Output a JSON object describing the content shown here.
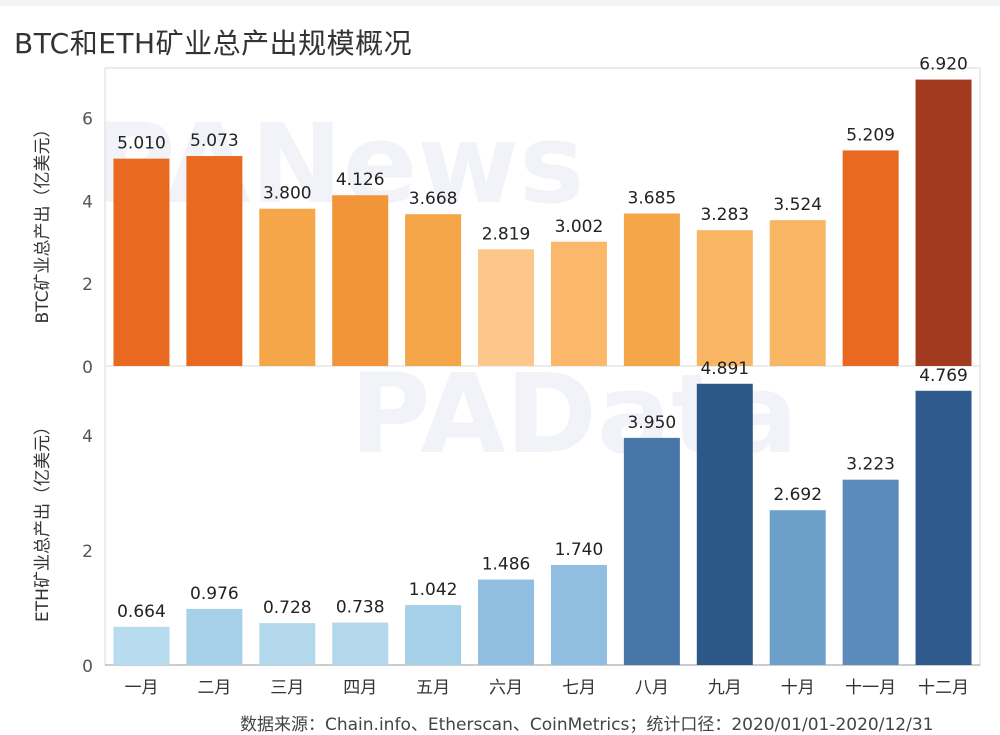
{
  "title": "BTC和ETH矿业总产出规模概况",
  "watermark": {
    "top": "PANews",
    "mid": "PAData"
  },
  "footer": "数据来源：Chain.info、Etherscan、CoinMetrics；统计口径：2020/01/01-2020/12/31",
  "chart_data": [
    {
      "type": "bar",
      "panel": "top",
      "ylabel": "BTC矿业总产出（亿美元）",
      "ylim": [
        0,
        7.2
      ],
      "yticks": [
        0,
        2,
        4,
        6
      ],
      "categories": [
        "一月",
        "二月",
        "三月",
        "四月",
        "五月",
        "六月",
        "七月",
        "八月",
        "九月",
        "十月",
        "十一月",
        "十二月"
      ],
      "values": [
        5.01,
        5.073,
        3.8,
        4.126,
        3.668,
        2.819,
        3.002,
        3.685,
        3.283,
        3.524,
        5.209,
        6.92
      ],
      "value_labels": [
        "5.010",
        "5.073",
        "3.800",
        "4.126",
        "3.668",
        "2.819",
        "3.002",
        "3.685",
        "3.283",
        "3.524",
        "5.209",
        "6.920"
      ],
      "colors": [
        "#e8691f",
        "#e8691f",
        "#f4a649",
        "#f29538",
        "#f4a649",
        "#fdc68a",
        "#fbb86b",
        "#f4a649",
        "#f8b563",
        "#f8b563",
        "#e8691f",
        "#a13a1f"
      ]
    },
    {
      "type": "bar",
      "panel": "bottom",
      "ylabel": "ETH矿业总产出（亿美元）",
      "ylim": [
        0,
        5.2
      ],
      "yticks": [
        0,
        2,
        4
      ],
      "categories": [
        "一月",
        "二月",
        "三月",
        "四月",
        "五月",
        "六月",
        "七月",
        "八月",
        "九月",
        "十月",
        "十一月",
        "十二月"
      ],
      "values": [
        0.664,
        0.976,
        0.728,
        0.738,
        1.042,
        1.486,
        1.74,
        3.95,
        4.891,
        2.692,
        3.223,
        4.769
      ],
      "value_labels": [
        "0.664",
        "0.976",
        "0.728",
        "0.738",
        "1.042",
        "1.486",
        "1.740",
        "3.950",
        "4.891",
        "2.692",
        "3.223",
        "4.769"
      ],
      "colors": [
        "#b8dcef",
        "#a6cfe8",
        "#b3d8ee",
        "#b3d8ee",
        "#a6cfe8",
        "#8fbee0",
        "#8fbee0",
        "#4876a8",
        "#2c5887",
        "#6d9fcb",
        "#5a8bbb",
        "#2e5a8d"
      ]
    }
  ]
}
